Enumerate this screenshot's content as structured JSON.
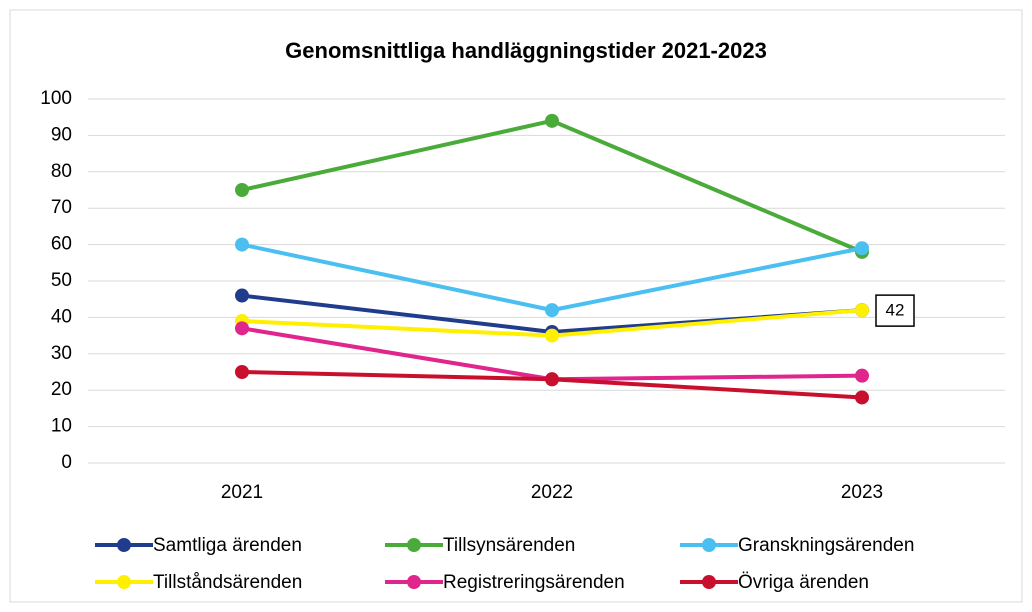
{
  "chart_data": {
    "type": "line",
    "title": "Genomsnittliga handläggningstider 2021-2023",
    "categories": [
      "2021",
      "2022",
      "2023"
    ],
    "series": [
      {
        "name": "Samtliga ärenden",
        "color": "#203c8c",
        "values": [
          46,
          36,
          42
        ]
      },
      {
        "name": "Tillsynsärenden",
        "color": "#4aab3a",
        "values": [
          75,
          94,
          58
        ]
      },
      {
        "name": "Granskningsärenden",
        "color": "#4bc0f0",
        "values": [
          60,
          42,
          59
        ]
      },
      {
        "name": "Tillståndsärenden",
        "color": "#ffef00",
        "values": [
          39,
          35,
          42
        ]
      },
      {
        "name": "Registreringsärenden",
        "color": "#e0258c",
        "values": [
          37,
          23,
          24
        ]
      },
      {
        "name": "Övriga ärenden",
        "color": "#c8102e",
        "values": [
          25,
          23,
          18
        ]
      }
    ],
    "ylim": [
      0,
      100
    ],
    "yticks": [
      0,
      10,
      20,
      30,
      40,
      50,
      60,
      70,
      80,
      90,
      100
    ],
    "grid": true,
    "legend": "bottom"
  }
}
